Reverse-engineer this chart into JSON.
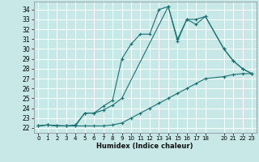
{
  "xlabel": "Humidex (Indice chaleur)",
  "bg_color": "#c8e8e8",
  "grid_color": "#ffffff",
  "line_color": "#1a7070",
  "xlim": [
    -0.5,
    23.5
  ],
  "ylim": [
    21.5,
    34.8
  ],
  "xticks": [
    0,
    1,
    2,
    3,
    4,
    5,
    6,
    7,
    8,
    9,
    10,
    11,
    12,
    13,
    14,
    15,
    16,
    17,
    18,
    20,
    21,
    22,
    23
  ],
  "yticks": [
    22,
    23,
    24,
    25,
    26,
    27,
    28,
    29,
    30,
    31,
    32,
    33,
    34
  ],
  "line_bottom_x": [
    0,
    1,
    2,
    3,
    4,
    5,
    6,
    7,
    8,
    9,
    10,
    11,
    12,
    13,
    14,
    15,
    16,
    17,
    18,
    20,
    21,
    22,
    23
  ],
  "line_bottom_y": [
    22.2,
    22.3,
    22.2,
    22.2,
    22.2,
    22.2,
    22.2,
    22.2,
    22.3,
    22.5,
    23.0,
    23.5,
    24.0,
    24.5,
    25.0,
    25.5,
    26.0,
    26.5,
    27.0,
    27.2,
    27.4,
    27.5,
    27.5
  ],
  "line_top_x": [
    0,
    1,
    2,
    3,
    4,
    5,
    6,
    7,
    8,
    9,
    10,
    11,
    12,
    13,
    14,
    15,
    16,
    17,
    18,
    20,
    21,
    22,
    23
  ],
  "line_top_y": [
    22.2,
    22.3,
    22.2,
    22.2,
    22.3,
    23.5,
    23.5,
    24.2,
    24.8,
    29.0,
    30.5,
    31.5,
    31.5,
    34.0,
    34.3,
    30.8,
    33.0,
    33.0,
    33.3,
    30.0,
    28.8,
    28.0,
    27.5
  ],
  "line_mid_x": [
    0,
    1,
    3,
    4,
    5,
    6,
    7,
    8,
    9,
    14,
    15,
    16,
    17,
    18,
    20,
    21,
    22,
    23
  ],
  "line_mid_y": [
    22.2,
    22.3,
    22.2,
    22.2,
    23.5,
    23.5,
    23.8,
    24.3,
    25.0,
    34.3,
    31.0,
    33.0,
    32.5,
    33.3,
    30.0,
    28.8,
    28.0,
    27.5
  ]
}
